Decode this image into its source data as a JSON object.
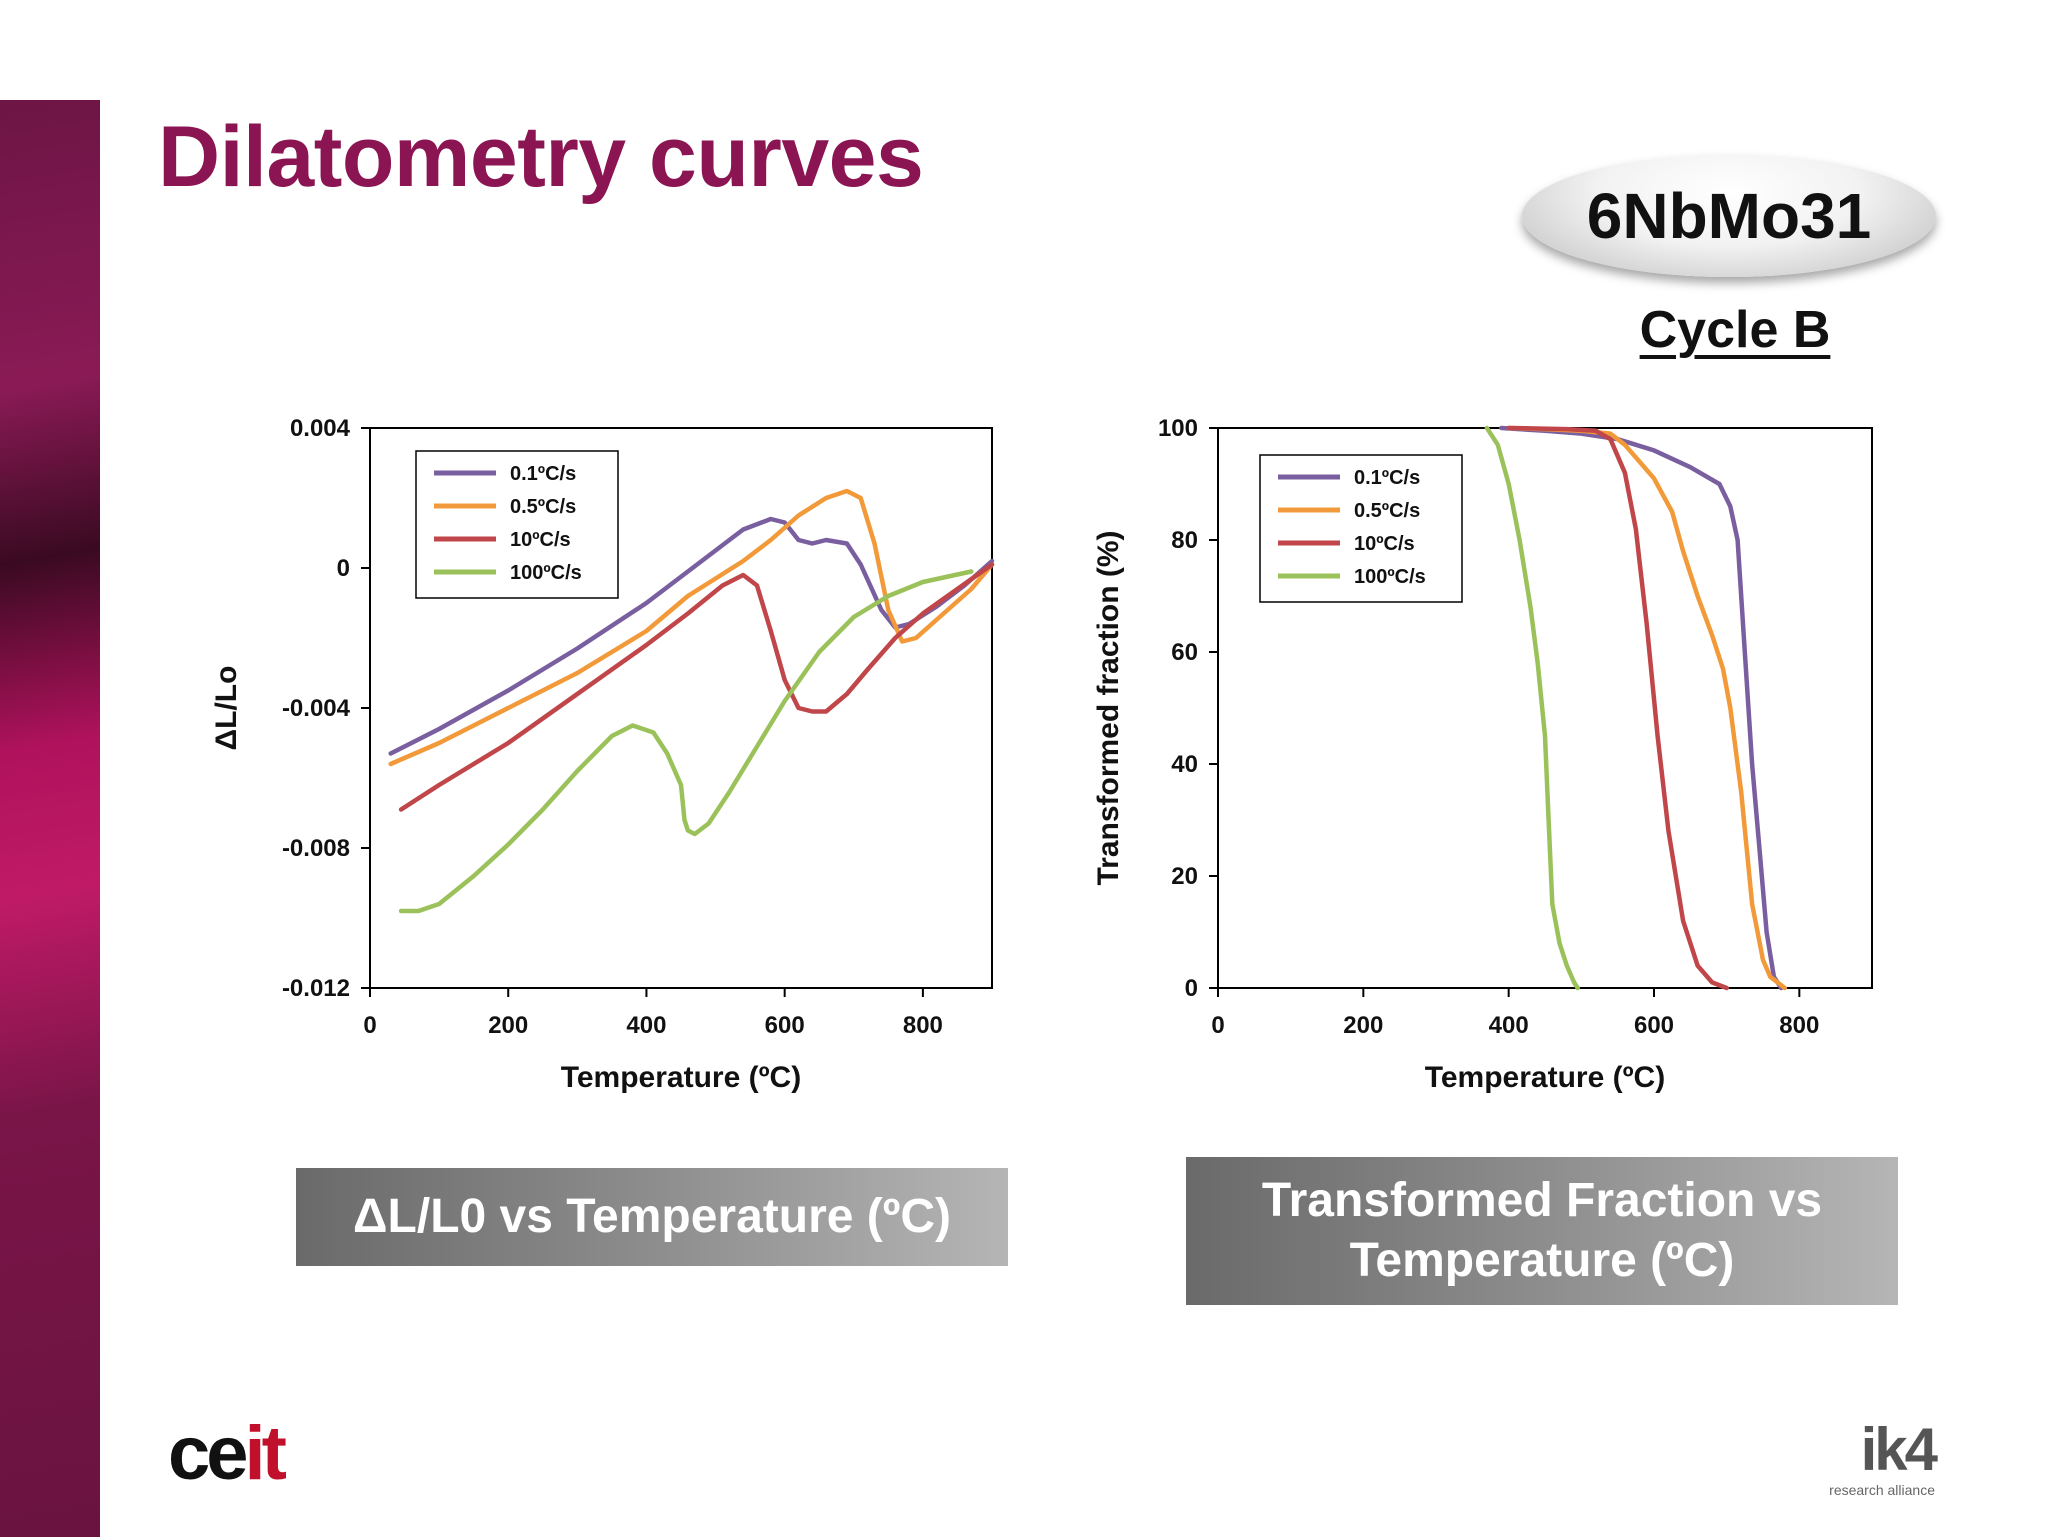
{
  "page": {
    "title": "Dilatometry curves",
    "badge": "6NbMo31",
    "cycle": "Cycle B",
    "caption_left": "ΔL/L0 vs Temperature (ºC)",
    "caption_right_line1": "Transformed Fraction vs",
    "caption_right_line2": "Temperature (ºC)",
    "logo_left_a": "ce",
    "logo_left_b": "it",
    "logo_right_big": "ik4",
    "logo_right_small": "research alliance",
    "colors": {
      "brand": "#8b1452",
      "purple": "#7a5fa0",
      "orange": "#f29a3a",
      "red": "#c0464a",
      "green": "#9bc25a"
    }
  },
  "chart_data": [
    {
      "type": "line",
      "xlabel": "Temperature (ºC)",
      "ylabel": "ΔL/Lo",
      "xlim": [
        0,
        900
      ],
      "ylim": [
        -0.012,
        0.004
      ],
      "x_ticks": [
        0,
        200,
        400,
        600,
        800
      ],
      "x_tick_labels": [
        "0",
        "200",
        "400",
        "600",
        "800"
      ],
      "y_ticks": [
        -0.012,
        -0.008,
        -0.004,
        0,
        0.004
      ],
      "y_tick_labels": [
        "-0.012",
        "-0.008",
        "-0.004",
        "0",
        "0.004"
      ],
      "legend_position": "top-left",
      "series": [
        {
          "name": "0.1ºC/s",
          "color": "#7a5fa0",
          "x": [
            30,
            100,
            200,
            300,
            400,
            480,
            540,
            580,
            600,
            620,
            640,
            660,
            690,
            710,
            740,
            760,
            780,
            820,
            860,
            900
          ],
          "y": [
            -0.0053,
            -0.0046,
            -0.0035,
            -0.0023,
            -0.001,
            0.0002,
            0.0011,
            0.0014,
            0.0013,
            0.0008,
            0.0007,
            0.0008,
            0.0007,
            0.0001,
            -0.0012,
            -0.0017,
            -0.0016,
            -0.0011,
            -0.0005,
            0.0002
          ]
        },
        {
          "name": "0.5ºC/s",
          "color": "#f29a3a",
          "x": [
            30,
            100,
            200,
            300,
            400,
            460,
            500,
            540,
            580,
            620,
            660,
            690,
            710,
            730,
            750,
            770,
            790,
            830,
            870,
            900
          ],
          "y": [
            -0.0056,
            -0.005,
            -0.004,
            -0.003,
            -0.0018,
            -0.0008,
            -0.0003,
            0.0002,
            0.0008,
            0.0015,
            0.002,
            0.0022,
            0.002,
            0.0007,
            -0.0012,
            -0.0021,
            -0.002,
            -0.0013,
            -0.0006,
            0.0001
          ]
        },
        {
          "name": "10ºC/s",
          "color": "#c0464a",
          "x": [
            45,
            100,
            200,
            300,
            400,
            460,
            510,
            540,
            560,
            580,
            600,
            620,
            640,
            660,
            690,
            720,
            760,
            800,
            850,
            900
          ],
          "y": [
            -0.0069,
            -0.0062,
            -0.005,
            -0.0036,
            -0.0022,
            -0.0013,
            -0.0005,
            -0.0002,
            -0.0005,
            -0.0018,
            -0.0032,
            -0.004,
            -0.0041,
            -0.0041,
            -0.0036,
            -0.0029,
            -0.002,
            -0.0013,
            -0.0006,
            0.0001
          ]
        },
        {
          "name": "100ºC/s",
          "color": "#9bc25a",
          "x": [
            45,
            70,
            100,
            150,
            200,
            250,
            300,
            350,
            380,
            410,
            430,
            450,
            455,
            460,
            470,
            490,
            520,
            560,
            600,
            650,
            700,
            750,
            800,
            870
          ],
          "y": [
            -0.0098,
            -0.0098,
            -0.0096,
            -0.0088,
            -0.0079,
            -0.0069,
            -0.0058,
            -0.0048,
            -0.0045,
            -0.0047,
            -0.0053,
            -0.0062,
            -0.0072,
            -0.0075,
            -0.0076,
            -0.0073,
            -0.0064,
            -0.0051,
            -0.0038,
            -0.0024,
            -0.0014,
            -0.0008,
            -0.0004,
            -0.0001
          ]
        }
      ]
    },
    {
      "type": "line",
      "xlabel": "Temperature (ºC)",
      "ylabel": "Transformed fraction (%)",
      "xlim": [
        0,
        900
      ],
      "ylim": [
        0,
        100
      ],
      "x_ticks": [
        0,
        200,
        400,
        600,
        800
      ],
      "x_tick_labels": [
        "0",
        "200",
        "400",
        "600",
        "800"
      ],
      "y_ticks": [
        0,
        20,
        40,
        60,
        80,
        100
      ],
      "y_tick_labels": [
        "0",
        "20",
        "40",
        "60",
        "80",
        "100"
      ],
      "legend_position": "top-left",
      "series": [
        {
          "name": "0.1ºC/s",
          "color": "#7a5fa0",
          "x": [
            390,
            450,
            500,
            550,
            600,
            650,
            690,
            705,
            715,
            725,
            735,
            745,
            755,
            765,
            775
          ],
          "y": [
            100,
            99.5,
            99,
            98,
            96,
            93,
            90,
            86,
            80,
            60,
            40,
            25,
            10,
            2,
            0
          ]
        },
        {
          "name": "0.5ºC/s",
          "color": "#f29a3a",
          "x": [
            400,
            450,
            500,
            540,
            560,
            580,
            600,
            625,
            640,
            660,
            680,
            695,
            705,
            720,
            735,
            750,
            760,
            770,
            780
          ],
          "y": [
            100,
            99.8,
            99.5,
            99,
            97,
            94,
            91,
            85,
            78,
            70,
            63,
            57,
            50,
            35,
            15,
            5,
            2,
            1,
            0
          ]
        },
        {
          "name": "10ºC/s",
          "color": "#c0464a",
          "x": [
            400,
            480,
            520,
            540,
            560,
            575,
            590,
            605,
            620,
            640,
            660,
            680,
            700
          ],
          "y": [
            100,
            99.8,
            99.5,
            98,
            92,
            82,
            65,
            45,
            28,
            12,
            4,
            1,
            0
          ]
        },
        {
          "name": "100ºC/s",
          "color": "#9bc25a",
          "x": [
            370,
            385,
            400,
            415,
            430,
            440,
            450,
            455,
            460,
            470,
            480,
            490,
            495
          ],
          "y": [
            100,
            97,
            90,
            80,
            68,
            58,
            45,
            30,
            15,
            8,
            4,
            1,
            0
          ]
        }
      ]
    }
  ]
}
